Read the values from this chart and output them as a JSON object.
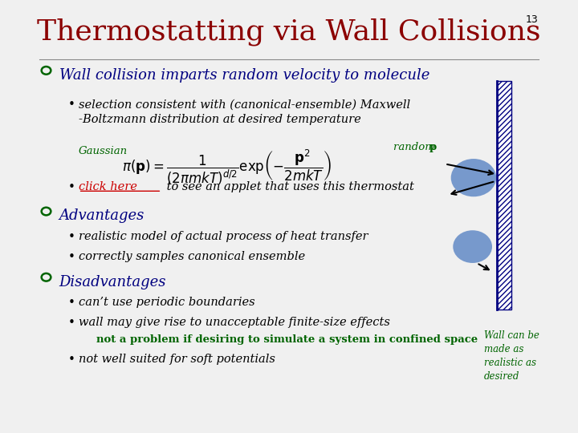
{
  "background_color": "#f0f0f0",
  "title": "Thermostatting via Wall Collisions",
  "title_color": "#8b0000",
  "title_fontsize": 26,
  "slide_number": "13",
  "wall_note": "Wall can be\nmade as\nrealistic as\ndesired",
  "wall_note_color": "#006400"
}
